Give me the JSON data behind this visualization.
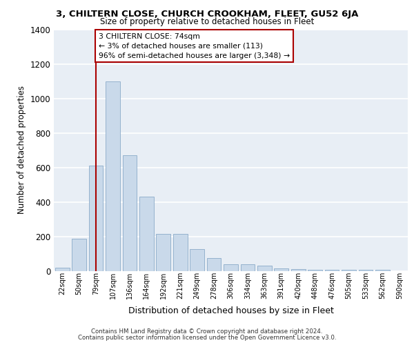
{
  "title": "3, CHILTERN CLOSE, CHURCH CROOKHAM, FLEET, GU52 6JA",
  "subtitle": "Size of property relative to detached houses in Fleet",
  "xlabel": "Distribution of detached houses by size in Fleet",
  "ylabel": "Number of detached properties",
  "bar_color": "#c9d9ea",
  "bar_edge_color": "#8aaac8",
  "background_color": "#e8eef5",
  "grid_color": "#ffffff",
  "annotation_line_color": "#aa0000",
  "annotation_box_text": "3 CHILTERN CLOSE: 74sqm\n← 3% of detached houses are smaller (113)\n96% of semi-detached houses are larger (3,348) →",
  "categories": [
    "22sqm",
    "50sqm",
    "79sqm",
    "107sqm",
    "136sqm",
    "164sqm",
    "192sqm",
    "221sqm",
    "249sqm",
    "278sqm",
    "306sqm",
    "334sqm",
    "363sqm",
    "391sqm",
    "420sqm",
    "448sqm",
    "476sqm",
    "505sqm",
    "533sqm",
    "562sqm",
    "590sqm"
  ],
  "values": [
    20,
    185,
    610,
    1100,
    670,
    430,
    215,
    215,
    125,
    75,
    40,
    40,
    30,
    15,
    10,
    5,
    5,
    5,
    5,
    5,
    0
  ],
  "ylim": [
    0,
    1400
  ],
  "yticks": [
    0,
    200,
    400,
    600,
    800,
    1000,
    1200,
    1400
  ],
  "vline_index": 2,
  "footer_line1": "Contains HM Land Registry data © Crown copyright and database right 2024.",
  "footer_line2": "Contains public sector information licensed under the Open Government Licence v3.0."
}
